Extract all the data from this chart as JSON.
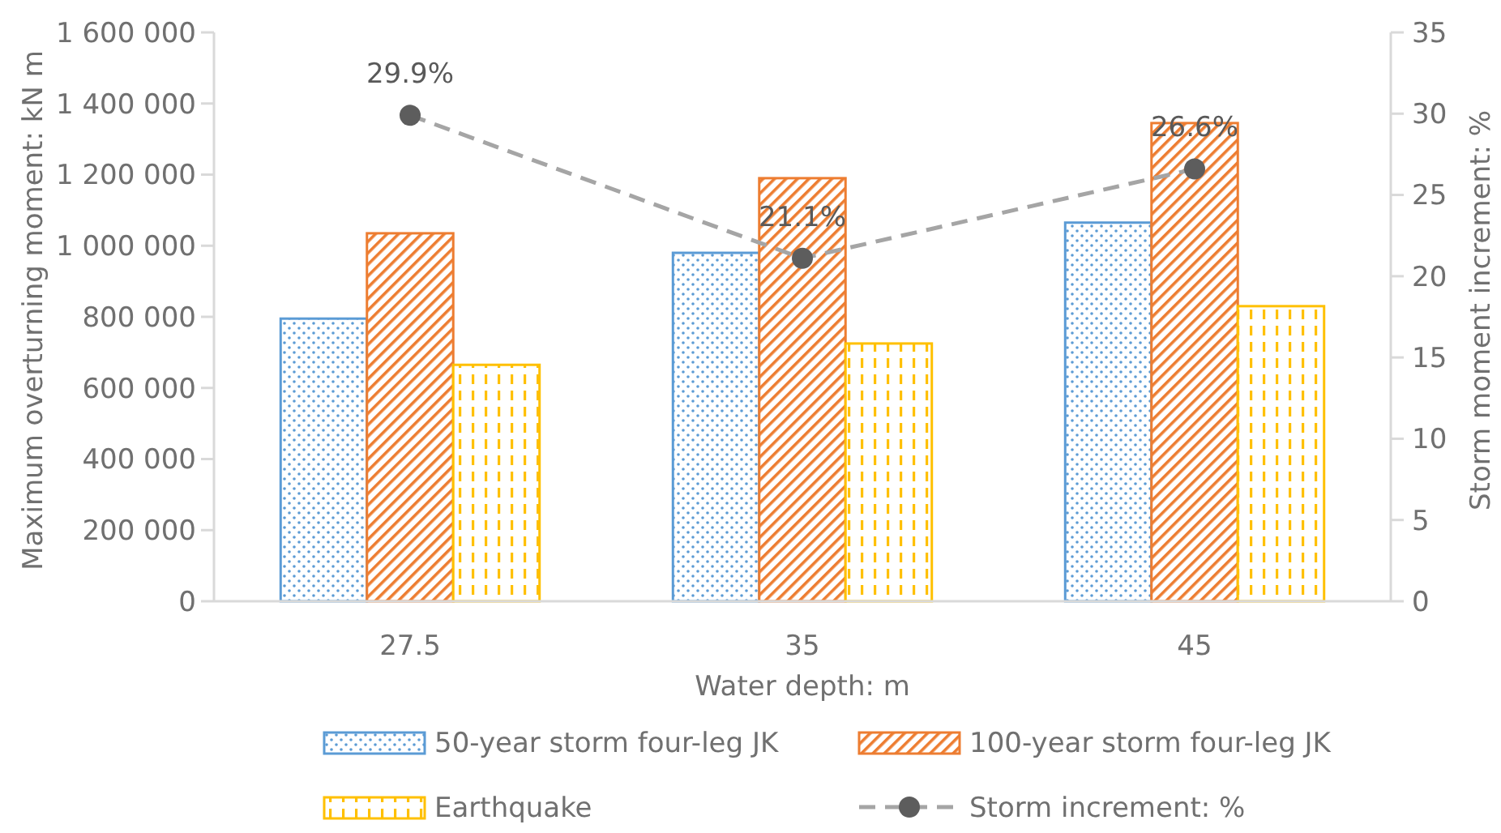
{
  "chart_data": {
    "type": "bar",
    "xlabel": "Water depth: m",
    "ylabel": "Maximum overturning moment: kN m",
    "y2label": "Storm moment increment: %",
    "categories": [
      "27.5",
      "35",
      "45"
    ],
    "series": [
      {
        "name": "50-year storm four-leg JK",
        "color": "#5b9bd5",
        "values": [
          795000,
          980000,
          1065000
        ]
      },
      {
        "name": "100-year storm four-leg JK",
        "color": "#ed7d31",
        "values": [
          1035000,
          1190000,
          1345000
        ]
      },
      {
        "name": "Earthquake",
        "color": "#ffc000",
        "values": [
          665000,
          725000,
          830000
        ]
      },
      {
        "name": "Storm increment: %",
        "type": "line",
        "axis": "y2",
        "color": "#a5a5a5",
        "marker": "circle",
        "line_style": "dashed",
        "values": [
          29.9,
          21.1,
          26.6
        ],
        "value_labels": [
          "29.9%",
          "21.1%",
          "26.6%"
        ]
      }
    ],
    "ylim": [
      0,
      1600000
    ],
    "yticks": [
      0,
      {
        "value": 200000,
        "label": "200 000"
      },
      {
        "value": 400000,
        "label": "400 000"
      },
      {
        "value": 600000,
        "label": "600 000"
      },
      {
        "value": 800000,
        "label": "800 000"
      },
      {
        "value": 1000000,
        "label": "1 000 000"
      },
      {
        "value": 1200000,
        "label": "1 200 000"
      },
      {
        "value": 1400000,
        "label": "1 400 000"
      },
      {
        "value": 1600000,
        "label": "1 600 000"
      }
    ],
    "y2lim": [
      0,
      35
    ],
    "y2ticks": [
      0,
      5,
      10,
      15,
      20,
      25,
      30,
      35
    ],
    "grid": false,
    "legend": "bottom"
  }
}
